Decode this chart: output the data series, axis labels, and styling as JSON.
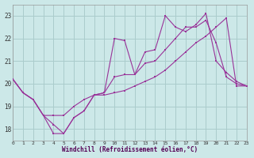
{
  "xlabel": "Windchill (Refroidissement éolien,°C)",
  "bg_color": "#cce8e8",
  "line_color": "#993399",
  "grid_color": "#aacccc",
  "xlim": [
    0,
    23
  ],
  "ylim": [
    17.5,
    23.5
  ],
  "yticks": [
    18,
    19,
    20,
    21,
    22,
    23
  ],
  "xticks": [
    0,
    1,
    2,
    3,
    4,
    5,
    6,
    7,
    8,
    9,
    10,
    11,
    12,
    13,
    14,
    15,
    16,
    17,
    18,
    19,
    20,
    21,
    22,
    23
  ],
  "line1_x": [
    0,
    1,
    2,
    3,
    4,
    5,
    6,
    7,
    8,
    9,
    10,
    11,
    12,
    13,
    14,
    15,
    16,
    17,
    18,
    19,
    20,
    21,
    22,
    23
  ],
  "line1_y": [
    20.2,
    19.6,
    19.3,
    18.6,
    17.8,
    17.8,
    18.5,
    18.8,
    19.5,
    19.6,
    20.3,
    20.4,
    20.4,
    20.9,
    21.0,
    21.5,
    22.0,
    22.5,
    22.5,
    22.8,
    21.8,
    20.3,
    20.0,
    19.9
  ],
  "line2_x": [
    0,
    1,
    2,
    3,
    4,
    5,
    6,
    7,
    8,
    9,
    10,
    11,
    12,
    13,
    14,
    15,
    16,
    17,
    18,
    19,
    20,
    21,
    22,
    23
  ],
  "line2_y": [
    20.2,
    19.6,
    19.3,
    18.6,
    18.6,
    18.6,
    19.0,
    19.3,
    19.5,
    19.5,
    19.6,
    19.7,
    19.9,
    20.1,
    20.3,
    20.6,
    21.0,
    21.4,
    21.8,
    22.1,
    22.5,
    22.9,
    19.9,
    19.9
  ],
  "line3_x": [
    0,
    1,
    2,
    3,
    4,
    5,
    6,
    7,
    8,
    9,
    10,
    11,
    12,
    13,
    14,
    15,
    16,
    17,
    18,
    19,
    20,
    21,
    22,
    23
  ],
  "line3_y": [
    20.2,
    19.6,
    19.3,
    18.6,
    18.2,
    17.8,
    18.5,
    18.8,
    19.5,
    19.6,
    22.0,
    21.9,
    20.4,
    21.4,
    21.5,
    23.0,
    22.5,
    22.3,
    22.6,
    23.1,
    21.0,
    20.5,
    20.1,
    19.9
  ]
}
